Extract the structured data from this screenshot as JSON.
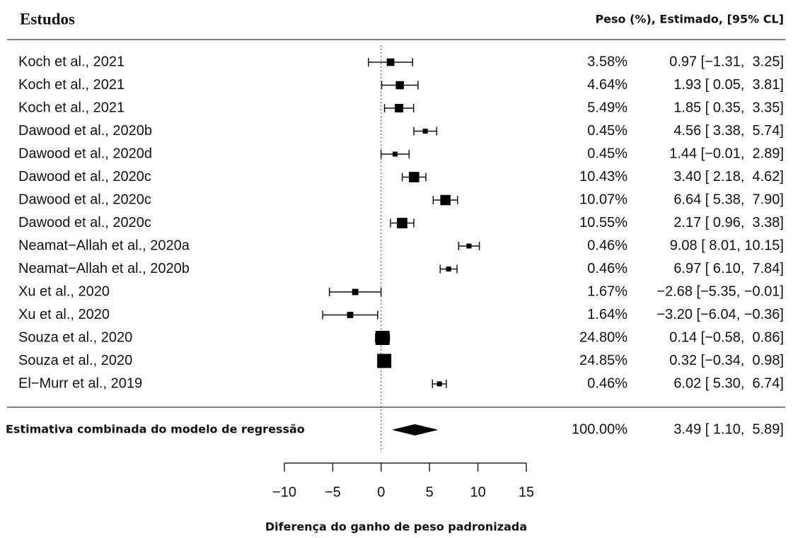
{
  "chart_data": {
    "type": "forest",
    "title": "Estudos",
    "column_header": "Peso (%), Estimado, [95% CL]",
    "xlabel": "Diferença do ganho de peso padronizada",
    "studies": [
      "Koch et al., 2021",
      "Koch et al., 2021",
      "Koch et al., 2021",
      "Dawood et al., 2020b",
      "Dawood et al., 2020d",
      "Dawood et al., 2020c",
      "Dawood et al., 2020c",
      "Dawood et al., 2020c",
      "Neamat−Allah et al., 2020a",
      "Neamat−Allah et al., 2020b",
      "Xu et al., 2020",
      "Xu et al., 2020",
      "Souza et al., 2020",
      "Souza et al., 2020",
      "El−Murr et al., 2019"
    ],
    "weights": [
      3.58,
      4.64,
      5.49,
      0.45,
      0.45,
      10.43,
      10.07,
      10.55,
      0.46,
      0.46,
      1.67,
      1.64,
      24.8,
      24.85,
      0.46
    ],
    "weight_labels": [
      "3.58%",
      "4.64%",
      "5.49%",
      "0.45%",
      "0.45%",
      "10.43%",
      "10.07%",
      "10.55%",
      "0.46%",
      "0.46%",
      "1.67%",
      "1.64%",
      "24.80%",
      "24.85%",
      "0.46%"
    ],
    "values": [
      0.97,
      1.93,
      1.85,
      4.56,
      1.44,
      3.4,
      6.64,
      2.17,
      9.08,
      6.97,
      -2.68,
      -3.2,
      0.14,
      0.32,
      6.02
    ],
    "lower": [
      -1.31,
      0.05,
      0.35,
      3.38,
      -0.01,
      2.18,
      5.38,
      0.96,
      8.01,
      6.1,
      -5.35,
      -6.04,
      -0.58,
      -0.34,
      5.3
    ],
    "upper": [
      3.25,
      3.81,
      3.35,
      5.74,
      2.89,
      4.62,
      7.9,
      3.38,
      10.15,
      7.84,
      -0.01,
      -0.36,
      0.86,
      0.98,
      6.74
    ],
    "value_labels": [
      "0.97 [−1.31,  3.25]",
      "1.93 [ 0.05,  3.81]",
      "1.85 [ 0.35,  3.35]",
      "4.56 [ 3.38,  5.74]",
      "1.44 [−0.01,  2.89]",
      "3.40 [ 2.18,  4.62]",
      "6.64 [ 5.38,  7.90]",
      "2.17 [ 0.96,  3.38]",
      "9.08 [ 8.01, 10.15]",
      "6.97 [ 6.10,  7.84]",
      "−2.68 [−5.35, −0.01]",
      "−3.20 [−6.04, −0.36]",
      "0.14 [−0.58,  0.86]",
      "0.32 [−0.34,  0.98]",
      "6.02 [ 5.30,  6.74]"
    ],
    "pooled": {
      "label": "Estimativa combinada do modelo de regressão",
      "weight": 100.0,
      "weight_label": "100.00%",
      "value": 3.49,
      "lower": 1.1,
      "upper": 5.89,
      "value_label": "3.49 [ 1.10,  5.89]"
    },
    "reference": 0,
    "xlim": [
      -10,
      15
    ],
    "xticks": [
      {
        "value": -10,
        "label": "−10"
      },
      {
        "value": -5,
        "label": "−5"
      },
      0,
      5,
      10,
      15
    ]
  }
}
